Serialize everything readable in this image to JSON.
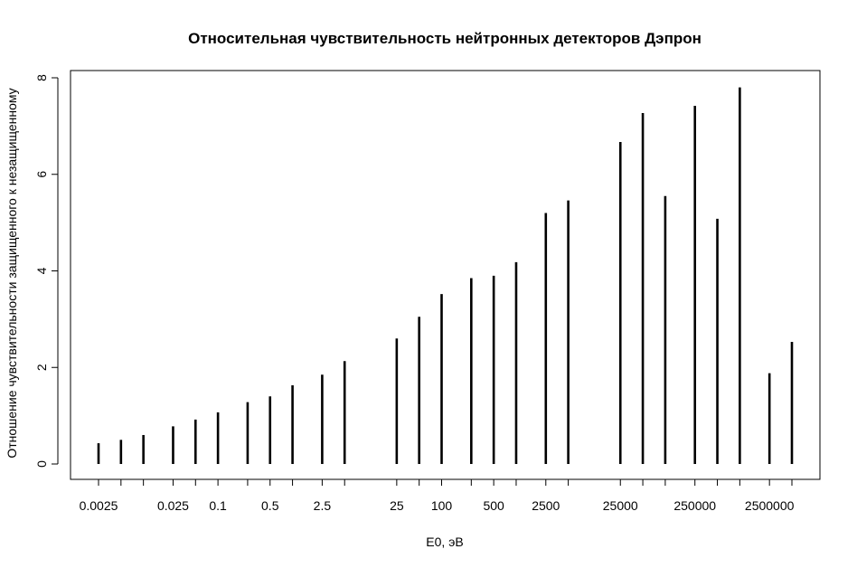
{
  "chart_data": {
    "type": "bar",
    "style": "vertical-lines",
    "title": "Относительная чувствительность нейтронных детекторов Дэпрон",
    "xlabel": "E0, эВ",
    "ylabel": "Отношение чувствительности защищенного к незащищенному",
    "x_scale": "log10",
    "ylim": [
      0,
      8
    ],
    "y_ticks": [
      "0",
      "2",
      "4",
      "6",
      "8"
    ],
    "x_tick_labels": [
      "0.0025",
      "0.025",
      "0.1",
      "0.5",
      "2.5",
      "25",
      "100",
      "500",
      "2500",
      "25000",
      "250000",
      "2500000"
    ],
    "x": [
      0.0025,
      0.005,
      0.01,
      0.025,
      0.05,
      0.1,
      0.25,
      0.5,
      1,
      2.5,
      5,
      25,
      50,
      100,
      250,
      500,
      1000,
      2500,
      5000,
      25000,
      50000,
      100000,
      250000,
      500000,
      1000000,
      2500000,
      5000000
    ],
    "values": [
      0.43,
      0.5,
      0.6,
      0.78,
      0.92,
      1.07,
      1.28,
      1.4,
      1.63,
      1.85,
      2.13,
      2.6,
      3.05,
      3.52,
      3.85,
      3.9,
      4.18,
      5.2,
      5.46,
      6.67,
      7.27,
      5.55,
      7.42,
      5.08,
      7.8,
      1.88,
      2.53
    ]
  }
}
